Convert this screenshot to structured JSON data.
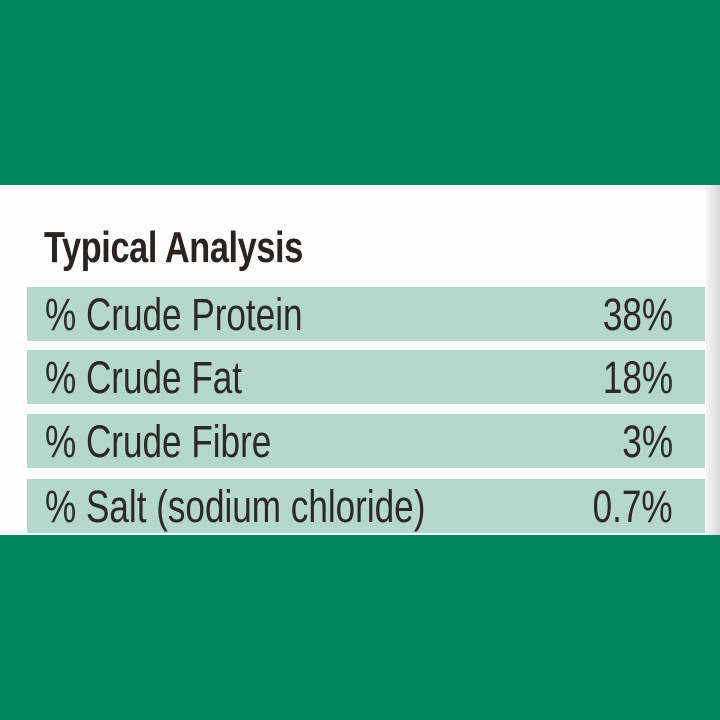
{
  "title": "Typical Analysis",
  "table": {
    "rows": [
      [
        "% Crude Protein",
        "38%"
      ],
      [
        "% Crude Fat",
        "18%"
      ],
      [
        "% Crude Fibre",
        "3%"
      ],
      [
        "% Salt (sodium chloride)",
        "0.7%"
      ]
    ]
  }
}
